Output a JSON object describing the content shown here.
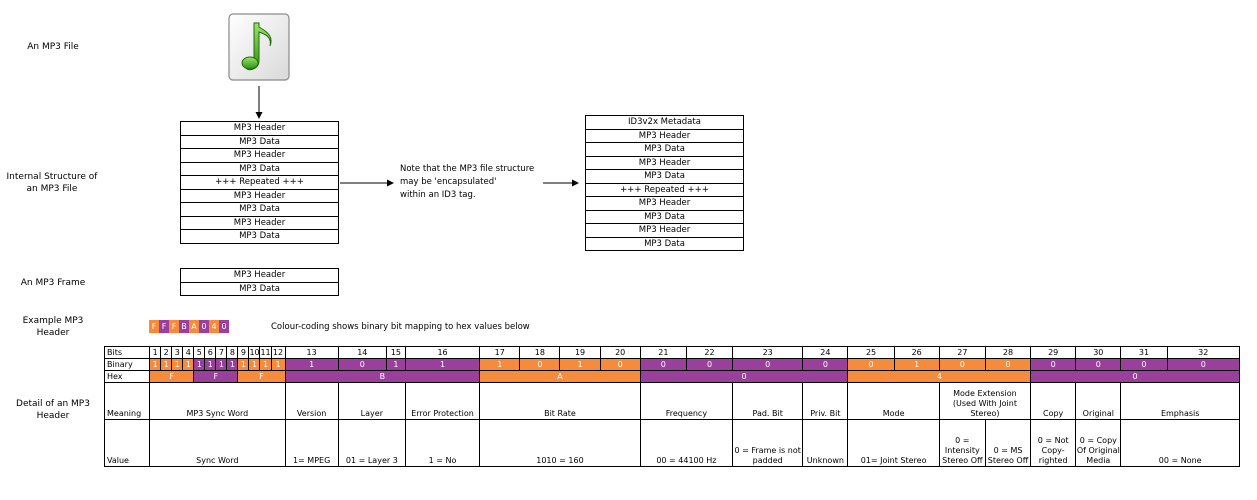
{
  "labels": {
    "file": "An MP3 File",
    "internal": "Internal Structure of an MP3 File",
    "frame": "An MP3 Frame",
    "example": "Example MP3 Header",
    "detail": "Detail of an MP3 Header"
  },
  "internal_stack": [
    "MP3 Header",
    "MP3 Data",
    "MP3 Header",
    "MP3 Data",
    "+++ Repeated +++",
    "MP3 Header",
    "MP3 Data",
    "MP3 Header",
    "MP3 Data"
  ],
  "id3_stack": [
    "ID3v2x Metadata",
    "MP3 Header",
    "MP3 Data",
    "MP3 Header",
    "MP3 Data",
    "+++ Repeated +++",
    "MP3 Header",
    "MP3 Data",
    "MP3 Header",
    "MP3 Data"
  ],
  "frame_stack": [
    "MP3 Header",
    "MP3 Data"
  ],
  "note": [
    "Note that the MP3 file structure",
    "may be 'encapsulated'",
    "within an ID3 tag."
  ],
  "example_hex": [
    "F",
    "F",
    "F",
    "B",
    "A",
    "0",
    "4",
    "0"
  ],
  "colour_note": "Colour-coding shows binary bit mapping to hex values below",
  "colors": {
    "orange": "#f58b3b",
    "purple": "#9a3f9c"
  },
  "table": {
    "row_labels": {
      "bits": "Bits",
      "binary": "Binary",
      "hex": "Hex",
      "meaning": "Meaning",
      "value": "Value"
    },
    "bits": [
      "1",
      "2",
      "3",
      "4",
      "5",
      "6",
      "7",
      "8",
      "9",
      "10",
      "11",
      "12",
      "13",
      "14",
      "15",
      "16",
      "17",
      "18",
      "19",
      "20",
      "21",
      "22",
      "23",
      "24",
      "25",
      "26",
      "27",
      "28",
      "29",
      "30",
      "31",
      "32"
    ],
    "binary": [
      "1",
      "1",
      "1",
      "1",
      "1",
      "1",
      "1",
      "1",
      "1",
      "1",
      "1",
      "1",
      "1",
      "0",
      "1",
      "1",
      "1",
      "0",
      "1",
      "0",
      "0",
      "0",
      "0",
      "0",
      "0",
      "1",
      "0",
      "0",
      "0",
      "0",
      "0",
      "0"
    ],
    "hex": [
      "F",
      "F",
      "F",
      "B",
      "A",
      "0",
      "4",
      "0"
    ],
    "meaning": {
      "sync": "MP3 Sync Word",
      "version": "Version",
      "layer": "Layer",
      "protection": "Error Protection",
      "bitrate": "Bit Rate",
      "frequency": "Frequency",
      "pad": "Pad. Bit",
      "priv": "Priv. Bit",
      "mode": "Mode",
      "modeext_1": "Mode Extension",
      "modeext_2": "(Used With Joint",
      "modeext_3": "Stereo)",
      "copy": "Copy",
      "original": "Original",
      "emphasis": "Emphasis"
    },
    "value": {
      "sync": "Sync Word",
      "version": "1= MPEG",
      "layer": "01 = Layer 3",
      "protection": "1 = No",
      "bitrate": "1010 = 160",
      "frequency": "00 = 44100 Hz",
      "pad": "0 = Frame is not padded",
      "priv": "Unknown",
      "mode": "01= Joint Stereo",
      "intensity": "0 = Intensity Stereo Off",
      "ms": "0 = MS Stereo Off",
      "copy": "0 = Not Copy-righted",
      "original": "0 = Copy Of Original Media",
      "emphasis": "00 = None"
    }
  }
}
